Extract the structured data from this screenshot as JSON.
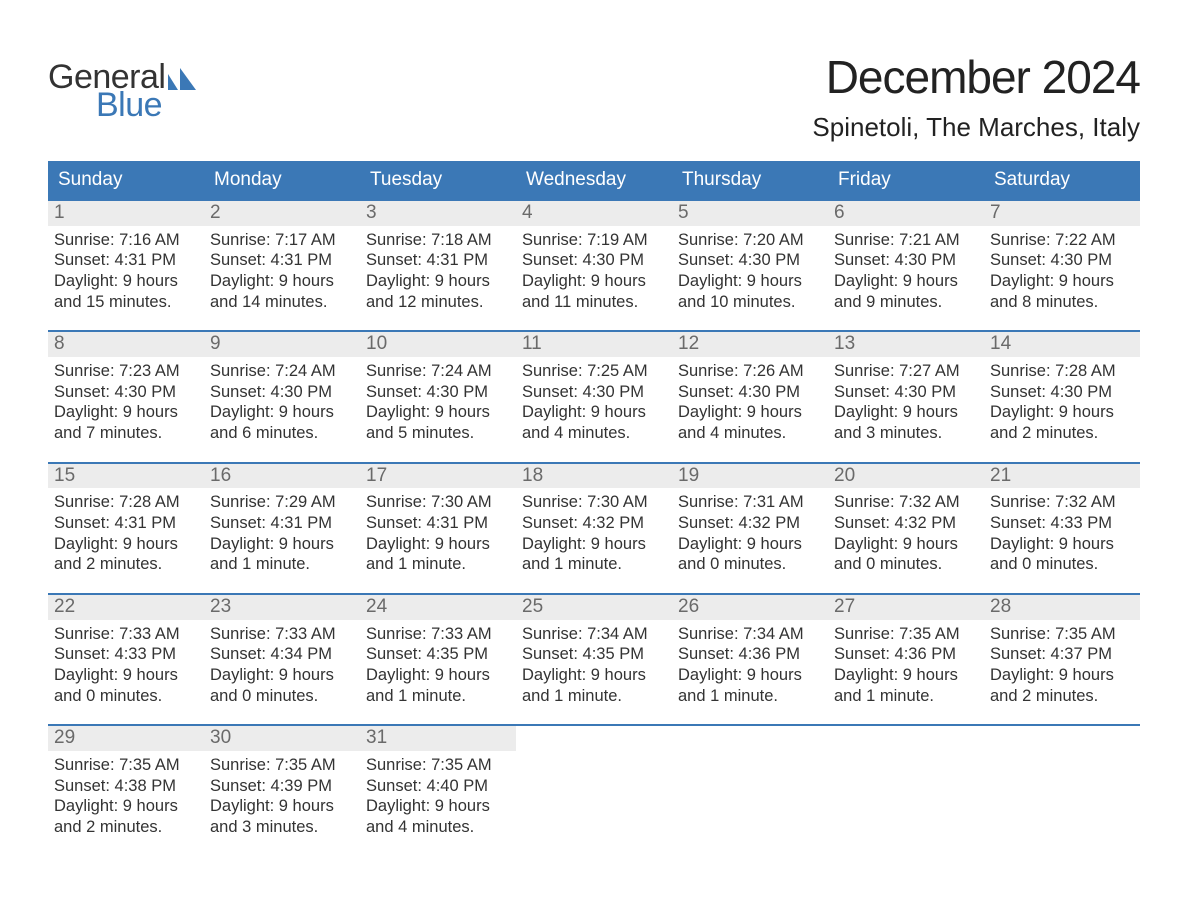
{
  "logo": {
    "text_top": "General",
    "text_bottom": "Blue",
    "top_color": "#333333",
    "bottom_color": "#3b78b6",
    "flag_color": "#3b78b6"
  },
  "title": "December 2024",
  "location": "Spinetoli, The Marches, Italy",
  "colors": {
    "header_bg": "#3b78b6",
    "header_text": "#ffffff",
    "week_border": "#3b78b6",
    "daynum_bg": "#ececec",
    "daynum_text": "#6a6a6a",
    "body_text": "#333333",
    "page_bg": "#ffffff"
  },
  "font": {
    "title_size_pt": 34,
    "location_size_pt": 20,
    "header_size_pt": 14,
    "daynum_size_pt": 14,
    "body_size_pt": 12
  },
  "layout": {
    "columns": 7,
    "rows": 5,
    "first_weekday": "Sunday"
  },
  "weekdays": [
    "Sunday",
    "Monday",
    "Tuesday",
    "Wednesday",
    "Thursday",
    "Friday",
    "Saturday"
  ],
  "days": [
    {
      "n": "1",
      "sunrise": "Sunrise: 7:16 AM",
      "sunset": "Sunset: 4:31 PM",
      "daylight1": "Daylight: 9 hours",
      "daylight2": "and 15 minutes."
    },
    {
      "n": "2",
      "sunrise": "Sunrise: 7:17 AM",
      "sunset": "Sunset: 4:31 PM",
      "daylight1": "Daylight: 9 hours",
      "daylight2": "and 14 minutes."
    },
    {
      "n": "3",
      "sunrise": "Sunrise: 7:18 AM",
      "sunset": "Sunset: 4:31 PM",
      "daylight1": "Daylight: 9 hours",
      "daylight2": "and 12 minutes."
    },
    {
      "n": "4",
      "sunrise": "Sunrise: 7:19 AM",
      "sunset": "Sunset: 4:30 PM",
      "daylight1": "Daylight: 9 hours",
      "daylight2": "and 11 minutes."
    },
    {
      "n": "5",
      "sunrise": "Sunrise: 7:20 AM",
      "sunset": "Sunset: 4:30 PM",
      "daylight1": "Daylight: 9 hours",
      "daylight2": "and 10 minutes."
    },
    {
      "n": "6",
      "sunrise": "Sunrise: 7:21 AM",
      "sunset": "Sunset: 4:30 PM",
      "daylight1": "Daylight: 9 hours",
      "daylight2": "and 9 minutes."
    },
    {
      "n": "7",
      "sunrise": "Sunrise: 7:22 AM",
      "sunset": "Sunset: 4:30 PM",
      "daylight1": "Daylight: 9 hours",
      "daylight2": "and 8 minutes."
    },
    {
      "n": "8",
      "sunrise": "Sunrise: 7:23 AM",
      "sunset": "Sunset: 4:30 PM",
      "daylight1": "Daylight: 9 hours",
      "daylight2": "and 7 minutes."
    },
    {
      "n": "9",
      "sunrise": "Sunrise: 7:24 AM",
      "sunset": "Sunset: 4:30 PM",
      "daylight1": "Daylight: 9 hours",
      "daylight2": "and 6 minutes."
    },
    {
      "n": "10",
      "sunrise": "Sunrise: 7:24 AM",
      "sunset": "Sunset: 4:30 PM",
      "daylight1": "Daylight: 9 hours",
      "daylight2": "and 5 minutes."
    },
    {
      "n": "11",
      "sunrise": "Sunrise: 7:25 AM",
      "sunset": "Sunset: 4:30 PM",
      "daylight1": "Daylight: 9 hours",
      "daylight2": "and 4 minutes."
    },
    {
      "n": "12",
      "sunrise": "Sunrise: 7:26 AM",
      "sunset": "Sunset: 4:30 PM",
      "daylight1": "Daylight: 9 hours",
      "daylight2": "and 4 minutes."
    },
    {
      "n": "13",
      "sunrise": "Sunrise: 7:27 AM",
      "sunset": "Sunset: 4:30 PM",
      "daylight1": "Daylight: 9 hours",
      "daylight2": "and 3 minutes."
    },
    {
      "n": "14",
      "sunrise": "Sunrise: 7:28 AM",
      "sunset": "Sunset: 4:30 PM",
      "daylight1": "Daylight: 9 hours",
      "daylight2": "and 2 minutes."
    },
    {
      "n": "15",
      "sunrise": "Sunrise: 7:28 AM",
      "sunset": "Sunset: 4:31 PM",
      "daylight1": "Daylight: 9 hours",
      "daylight2": "and 2 minutes."
    },
    {
      "n": "16",
      "sunrise": "Sunrise: 7:29 AM",
      "sunset": "Sunset: 4:31 PM",
      "daylight1": "Daylight: 9 hours",
      "daylight2": "and 1 minute."
    },
    {
      "n": "17",
      "sunrise": "Sunrise: 7:30 AM",
      "sunset": "Sunset: 4:31 PM",
      "daylight1": "Daylight: 9 hours",
      "daylight2": "and 1 minute."
    },
    {
      "n": "18",
      "sunrise": "Sunrise: 7:30 AM",
      "sunset": "Sunset: 4:32 PM",
      "daylight1": "Daylight: 9 hours",
      "daylight2": "and 1 minute."
    },
    {
      "n": "19",
      "sunrise": "Sunrise: 7:31 AM",
      "sunset": "Sunset: 4:32 PM",
      "daylight1": "Daylight: 9 hours",
      "daylight2": "and 0 minutes."
    },
    {
      "n": "20",
      "sunrise": "Sunrise: 7:32 AM",
      "sunset": "Sunset: 4:32 PM",
      "daylight1": "Daylight: 9 hours",
      "daylight2": "and 0 minutes."
    },
    {
      "n": "21",
      "sunrise": "Sunrise: 7:32 AM",
      "sunset": "Sunset: 4:33 PM",
      "daylight1": "Daylight: 9 hours",
      "daylight2": "and 0 minutes."
    },
    {
      "n": "22",
      "sunrise": "Sunrise: 7:33 AM",
      "sunset": "Sunset: 4:33 PM",
      "daylight1": "Daylight: 9 hours",
      "daylight2": "and 0 minutes."
    },
    {
      "n": "23",
      "sunrise": "Sunrise: 7:33 AM",
      "sunset": "Sunset: 4:34 PM",
      "daylight1": "Daylight: 9 hours",
      "daylight2": "and 0 minutes."
    },
    {
      "n": "24",
      "sunrise": "Sunrise: 7:33 AM",
      "sunset": "Sunset: 4:35 PM",
      "daylight1": "Daylight: 9 hours",
      "daylight2": "and 1 minute."
    },
    {
      "n": "25",
      "sunrise": "Sunrise: 7:34 AM",
      "sunset": "Sunset: 4:35 PM",
      "daylight1": "Daylight: 9 hours",
      "daylight2": "and 1 minute."
    },
    {
      "n": "26",
      "sunrise": "Sunrise: 7:34 AM",
      "sunset": "Sunset: 4:36 PM",
      "daylight1": "Daylight: 9 hours",
      "daylight2": "and 1 minute."
    },
    {
      "n": "27",
      "sunrise": "Sunrise: 7:35 AM",
      "sunset": "Sunset: 4:36 PM",
      "daylight1": "Daylight: 9 hours",
      "daylight2": "and 1 minute."
    },
    {
      "n": "28",
      "sunrise": "Sunrise: 7:35 AM",
      "sunset": "Sunset: 4:37 PM",
      "daylight1": "Daylight: 9 hours",
      "daylight2": "and 2 minutes."
    },
    {
      "n": "29",
      "sunrise": "Sunrise: 7:35 AM",
      "sunset": "Sunset: 4:38 PM",
      "daylight1": "Daylight: 9 hours",
      "daylight2": "and 2 minutes."
    },
    {
      "n": "30",
      "sunrise": "Sunrise: 7:35 AM",
      "sunset": "Sunset: 4:39 PM",
      "daylight1": "Daylight: 9 hours",
      "daylight2": "and 3 minutes."
    },
    {
      "n": "31",
      "sunrise": "Sunrise: 7:35 AM",
      "sunset": "Sunset: 4:40 PM",
      "daylight1": "Daylight: 9 hours",
      "daylight2": "and 4 minutes."
    }
  ]
}
